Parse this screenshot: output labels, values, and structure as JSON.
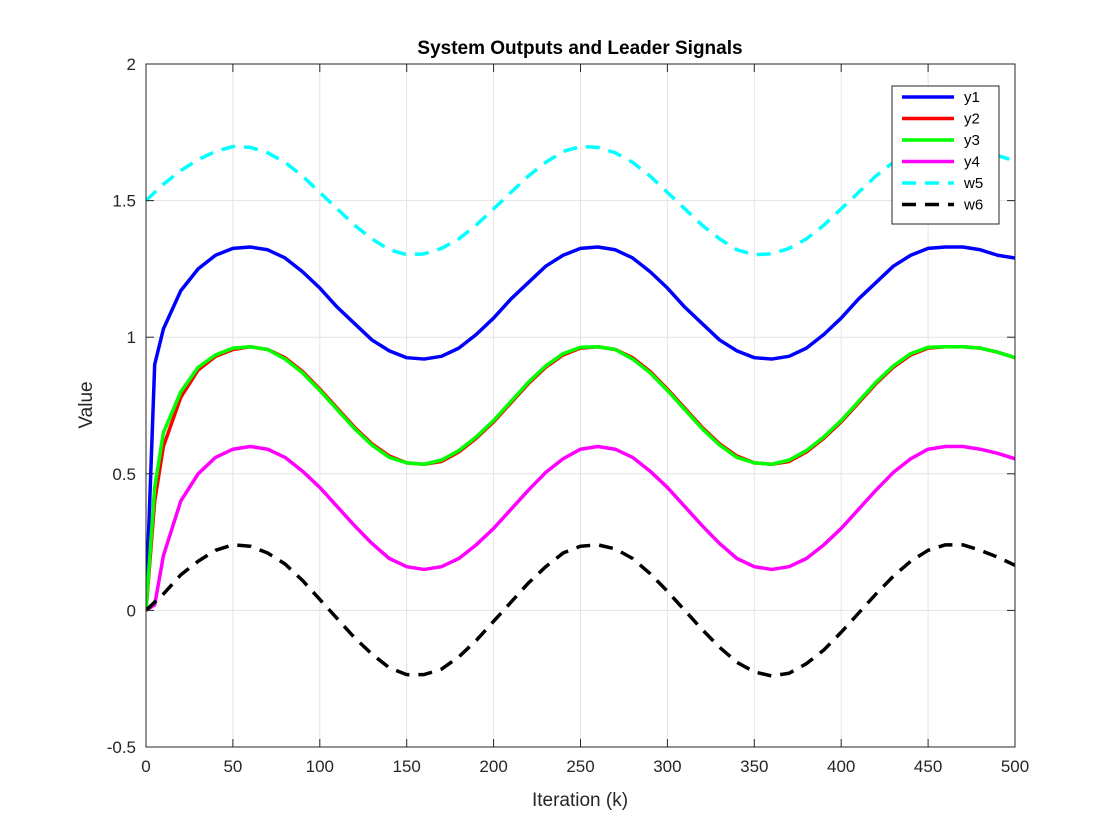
{
  "chart_data": {
    "type": "line",
    "title": "System Outputs and Leader Signals",
    "xlabel": "Iteration (k)",
    "ylabel": "Value",
    "xlim": [
      0,
      500
    ],
    "ylim": [
      -0.5,
      2
    ],
    "xticks": [
      "0",
      "50",
      "100",
      "150",
      "200",
      "250",
      "300",
      "350",
      "400",
      "450",
      "500"
    ],
    "yticks": [
      "-0.5",
      "0",
      "0.5",
      "1",
      "1.5",
      "2"
    ],
    "grid": true,
    "legend_position": "top-right",
    "x": [
      0,
      5,
      10,
      20,
      30,
      40,
      50,
      60,
      70,
      80,
      90,
      100,
      110,
      120,
      130,
      140,
      150,
      160,
      170,
      180,
      190,
      200,
      210,
      220,
      230,
      240,
      250,
      260,
      270,
      280,
      290,
      300,
      310,
      320,
      330,
      340,
      350,
      360,
      370,
      380,
      390,
      400,
      410,
      420,
      430,
      440,
      450,
      460,
      470,
      480,
      490,
      500
    ],
    "series": [
      {
        "name": "y1",
        "color": "#0000ff",
        "dashed": false,
        "values": [
          0.02,
          0.9,
          1.03,
          1.17,
          1.25,
          1.3,
          1.325,
          1.33,
          1.32,
          1.29,
          1.24,
          1.18,
          1.11,
          1.05,
          0.99,
          0.95,
          0.925,
          0.92,
          0.93,
          0.96,
          1.01,
          1.07,
          1.14,
          1.2,
          1.26,
          1.3,
          1.325,
          1.33,
          1.32,
          1.29,
          1.24,
          1.18,
          1.11,
          1.05,
          0.99,
          0.95,
          0.925,
          0.92,
          0.93,
          0.96,
          1.01,
          1.07,
          1.14,
          1.2,
          1.26,
          1.3,
          1.325,
          1.33,
          1.33,
          1.32,
          1.3,
          1.29
        ]
      },
      {
        "name": "y2",
        "color": "#ff0000",
        "dashed": false,
        "values": [
          0.0,
          0.4,
          0.6,
          0.78,
          0.88,
          0.93,
          0.955,
          0.965,
          0.955,
          0.925,
          0.875,
          0.81,
          0.74,
          0.67,
          0.61,
          0.565,
          0.54,
          0.535,
          0.545,
          0.58,
          0.63,
          0.69,
          0.76,
          0.83,
          0.89,
          0.935,
          0.96,
          0.965,
          0.955,
          0.925,
          0.875,
          0.81,
          0.74,
          0.67,
          0.61,
          0.565,
          0.54,
          0.535,
          0.545,
          0.58,
          0.63,
          0.69,
          0.76,
          0.83,
          0.89,
          0.935,
          0.96,
          0.965,
          0.965,
          0.96,
          0.945,
          0.925
        ]
      },
      {
        "name": "y3",
        "color": "#00ff00",
        "dashed": false,
        "values": [
          0.0,
          0.45,
          0.65,
          0.8,
          0.89,
          0.935,
          0.96,
          0.965,
          0.955,
          0.92,
          0.87,
          0.805,
          0.735,
          0.665,
          0.605,
          0.56,
          0.54,
          0.535,
          0.55,
          0.585,
          0.635,
          0.695,
          0.765,
          0.835,
          0.895,
          0.94,
          0.963,
          0.965,
          0.955,
          0.92,
          0.87,
          0.805,
          0.735,
          0.665,
          0.605,
          0.56,
          0.54,
          0.535,
          0.55,
          0.585,
          0.635,
          0.695,
          0.765,
          0.835,
          0.895,
          0.94,
          0.963,
          0.965,
          0.965,
          0.96,
          0.945,
          0.925
        ]
      },
      {
        "name": "y4",
        "color": "#ff00ff",
        "dashed": false,
        "values": [
          0.0,
          0.02,
          0.2,
          0.4,
          0.5,
          0.56,
          0.59,
          0.6,
          0.59,
          0.56,
          0.51,
          0.45,
          0.38,
          0.31,
          0.245,
          0.19,
          0.16,
          0.15,
          0.16,
          0.19,
          0.24,
          0.3,
          0.37,
          0.44,
          0.505,
          0.555,
          0.59,
          0.6,
          0.59,
          0.56,
          0.51,
          0.45,
          0.38,
          0.31,
          0.245,
          0.19,
          0.16,
          0.15,
          0.16,
          0.19,
          0.24,
          0.3,
          0.37,
          0.44,
          0.505,
          0.555,
          0.59,
          0.6,
          0.6,
          0.59,
          0.575,
          0.555
        ]
      },
      {
        "name": "w5",
        "color": "#00ffff",
        "dashed": true,
        "values": [
          1.5,
          1.53,
          1.56,
          1.61,
          1.65,
          1.68,
          1.698,
          1.695,
          1.675,
          1.64,
          1.59,
          1.53,
          1.47,
          1.41,
          1.36,
          1.32,
          1.302,
          1.305,
          1.325,
          1.36,
          1.41,
          1.47,
          1.53,
          1.59,
          1.64,
          1.68,
          1.698,
          1.695,
          1.675,
          1.64,
          1.59,
          1.53,
          1.47,
          1.41,
          1.36,
          1.32,
          1.302,
          1.305,
          1.325,
          1.36,
          1.41,
          1.47,
          1.53,
          1.59,
          1.64,
          1.68,
          1.698,
          1.695,
          1.69,
          1.68,
          1.665,
          1.645
        ]
      },
      {
        "name": "w6",
        "color": "#000000",
        "dashed": true,
        "values": [
          0.0,
          0.03,
          0.06,
          0.13,
          0.18,
          0.22,
          0.24,
          0.235,
          0.21,
          0.17,
          0.11,
          0.04,
          -0.03,
          -0.1,
          -0.16,
          -0.21,
          -0.235,
          -0.235,
          -0.215,
          -0.17,
          -0.11,
          -0.04,
          0.03,
          0.1,
          0.16,
          0.21,
          0.235,
          0.24,
          0.225,
          0.19,
          0.135,
          0.07,
          0.0,
          -0.07,
          -0.135,
          -0.19,
          -0.225,
          -0.24,
          -0.23,
          -0.195,
          -0.145,
          -0.08,
          -0.01,
          0.06,
          0.125,
          0.18,
          0.22,
          0.24,
          0.24,
          0.22,
          0.195,
          0.165
        ]
      }
    ]
  }
}
